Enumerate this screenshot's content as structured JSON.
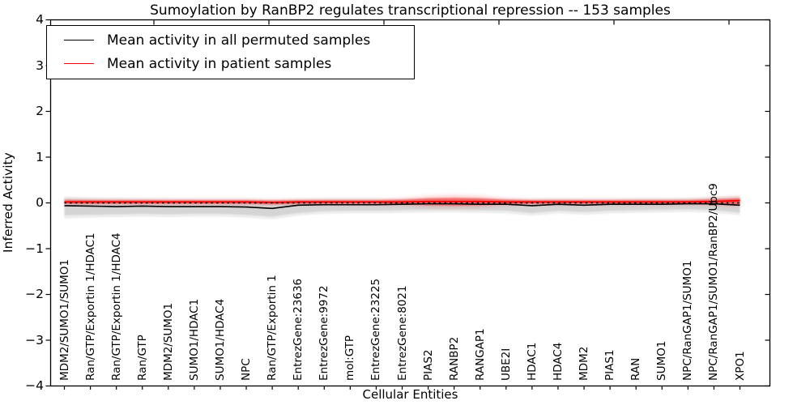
{
  "title": "Sumoylation by RanBP2 regulates transcriptional repression -- 153 samples",
  "axes": {
    "ylabel": "Inferred Activity",
    "xlabel": "Cellular Entities"
  },
  "legend": {
    "entries": [
      {
        "label": "Mean activity in all permuted samples",
        "color": "#000000"
      },
      {
        "label": "Mean activity in patient samples",
        "color": "#ff0000"
      }
    ]
  },
  "chart_data": {
    "type": "line",
    "title": "Sumoylation by RanBP2 regulates transcriptional repression -- 153 samples",
    "xlabel": "Cellular Entities",
    "ylabel": "Inferred Activity",
    "ylim": [
      -4,
      4
    ],
    "yticks": [
      4,
      3,
      2,
      1,
      0,
      -1,
      -2,
      -3,
      -4
    ],
    "ytick_labels": [
      "4",
      "3",
      "2",
      "1",
      "0",
      "−1",
      "−2",
      "−3",
      "−4"
    ],
    "grid": false,
    "legend_position": "upper left",
    "reference_line": 0,
    "categories": [
      "MDM2/SUMO1/SUMO1",
      "Ran/GTP/Exportin 1/HDAC1",
      "Ran/GTP/Exportin 1/HDAC4",
      "Ran/GTP",
      "MDM2/SUMO1",
      "SUMO1/HDAC1",
      "SUMO1/HDAC4",
      "NPC",
      "Ran/GTP/Exportin 1",
      "EntrezGene:23636",
      "EntrezGene:9972",
      "mol:GTP",
      "EntrezGene:23225",
      "EntrezGene:8021",
      "PIAS2",
      "RANBP2",
      "RANGAP1",
      "UBE2I",
      "HDAC1",
      "HDAC4",
      "MDM2",
      "PIAS1",
      "RAN",
      "SUMO1",
      "NPC/RanGAP1/SUMO1",
      "NPC/RanGAP1/SUMO1/RanBP2/Ubc9",
      "XPO1"
    ],
    "series": [
      {
        "name": "Mean activity in all permuted samples",
        "color": "#000000",
        "style": "solid",
        "values": [
          -0.06,
          -0.07,
          -0.08,
          -0.07,
          -0.08,
          -0.08,
          -0.08,
          -0.09,
          -0.12,
          -0.05,
          -0.04,
          -0.04,
          -0.04,
          -0.03,
          -0.02,
          -0.02,
          -0.03,
          -0.03,
          -0.06,
          -0.03,
          -0.05,
          -0.03,
          -0.03,
          -0.03,
          -0.02,
          -0.02,
          -0.05
        ]
      },
      {
        "name": "Mean activity in patient samples",
        "color": "#ff0000",
        "style": "solid",
        "values": [
          0.02,
          0.02,
          0.02,
          0.02,
          0.02,
          0.02,
          0.02,
          0.02,
          0.01,
          0.02,
          0.02,
          0.02,
          0.02,
          0.02,
          0.03,
          0.03,
          0.03,
          0.02,
          0.02,
          0.02,
          0.02,
          0.02,
          0.02,
          0.02,
          0.02,
          0.03,
          0.05
        ]
      }
    ],
    "bands": [
      {
        "name": "permuted-range-outer",
        "color": "#000000",
        "opacity": 0.07,
        "blur": "soft",
        "upper": [
          0.14,
          0.12,
          0.11,
          0.1,
          0.1,
          0.09,
          0.09,
          0.09,
          0.08,
          0.09,
          0.1,
          0.1,
          0.1,
          0.1,
          0.11,
          0.11,
          0.11,
          0.1,
          0.09,
          0.1,
          0.09,
          0.09,
          0.1,
          0.1,
          0.11,
          0.13,
          0.16
        ],
        "lower": [
          -0.34,
          -0.32,
          -0.31,
          -0.3,
          -0.31,
          -0.3,
          -0.3,
          -0.32,
          -0.36,
          -0.28,
          -0.24,
          -0.23,
          -0.23,
          -0.22,
          -0.21,
          -0.21,
          -0.22,
          -0.23,
          -0.28,
          -0.23,
          -0.26,
          -0.23,
          -0.22,
          -0.21,
          -0.2,
          -0.22,
          -0.27
        ]
      },
      {
        "name": "permuted-range-inner",
        "color": "#000000",
        "opacity": 0.1,
        "blur": "soft",
        "upper": [
          0.09,
          0.07,
          0.06,
          0.06,
          0.05,
          0.05,
          0.05,
          0.05,
          0.04,
          0.05,
          0.06,
          0.06,
          0.06,
          0.06,
          0.07,
          0.07,
          0.07,
          0.06,
          0.05,
          0.06,
          0.05,
          0.05,
          0.06,
          0.06,
          0.07,
          0.08,
          0.1
        ],
        "lower": [
          -0.27,
          -0.26,
          -0.25,
          -0.24,
          -0.25,
          -0.24,
          -0.24,
          -0.26,
          -0.3,
          -0.22,
          -0.18,
          -0.17,
          -0.17,
          -0.16,
          -0.15,
          -0.15,
          -0.16,
          -0.17,
          -0.22,
          -0.17,
          -0.2,
          -0.17,
          -0.16,
          -0.15,
          -0.14,
          -0.16,
          -0.21
        ]
      },
      {
        "name": "patient-range-outer",
        "color": "#ff0000",
        "opacity": 0.18,
        "blur": "softer",
        "upper": [
          0.08,
          0.08,
          0.08,
          0.08,
          0.08,
          0.08,
          0.08,
          0.08,
          0.07,
          0.08,
          0.08,
          0.08,
          0.08,
          0.1,
          0.15,
          0.17,
          0.15,
          0.1,
          0.08,
          0.08,
          0.08,
          0.08,
          0.08,
          0.08,
          0.08,
          0.11,
          0.14
        ],
        "lower": [
          -0.04,
          -0.04,
          -0.04,
          -0.04,
          -0.04,
          -0.04,
          -0.04,
          -0.04,
          -0.05,
          -0.04,
          -0.04,
          -0.04,
          -0.04,
          -0.05,
          -0.09,
          -0.1,
          -0.09,
          -0.05,
          -0.04,
          -0.04,
          -0.04,
          -0.04,
          -0.04,
          -0.04,
          -0.04,
          -0.06,
          -0.08
        ]
      },
      {
        "name": "patient-range-inner",
        "color": "#ff0000",
        "opacity": 0.42,
        "blur": "soft",
        "upper": [
          0.06,
          0.06,
          0.06,
          0.06,
          0.06,
          0.06,
          0.06,
          0.06,
          0.05,
          0.06,
          0.06,
          0.06,
          0.06,
          0.07,
          0.1,
          0.11,
          0.1,
          0.07,
          0.06,
          0.06,
          0.06,
          0.06,
          0.06,
          0.06,
          0.06,
          0.08,
          0.1
        ],
        "lower": [
          -0.02,
          -0.02,
          -0.02,
          -0.02,
          -0.02,
          -0.02,
          -0.02,
          -0.02,
          -0.03,
          -0.02,
          -0.02,
          -0.02,
          -0.02,
          -0.03,
          -0.05,
          -0.06,
          -0.05,
          -0.03,
          -0.02,
          -0.02,
          -0.02,
          -0.02,
          -0.02,
          -0.02,
          -0.02,
          -0.03,
          -0.04
        ]
      }
    ]
  }
}
